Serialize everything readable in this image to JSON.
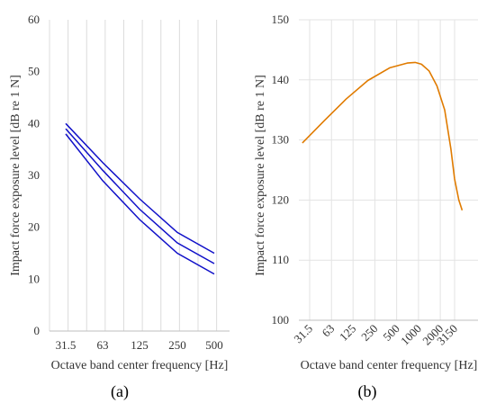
{
  "chart_data": [
    {
      "type": "line",
      "panel_label": "(a)",
      "xlabel": "Octave band center frequency [Hz]",
      "ylabel": "Impact force exposure level [dB re 1 N]",
      "ylim": [
        0,
        60
      ],
      "yticks": [
        "0",
        "10",
        "20",
        "30",
        "40",
        "50",
        "60"
      ],
      "categories": [
        "31.5",
        "63",
        "125",
        "250",
        "500"
      ],
      "color": "#1010c8",
      "grid": "vertical",
      "series": [
        {
          "values": [
            40,
            32.5,
            25.5,
            19,
            15
          ]
        },
        {
          "values": [
            39,
            31,
            23.5,
            17,
            13
          ]
        },
        {
          "values": [
            38,
            29,
            21.5,
            15,
            11
          ]
        }
      ]
    },
    {
      "type": "line",
      "panel_label": "(b)",
      "xlabel": "Octave band center frequency [Hz]",
      "ylabel": "Impact force exposure level [dB re 1 N]",
      "ylim": [
        100,
        150
      ],
      "yticks": [
        "100",
        "110",
        "120",
        "130",
        "140",
        "150"
      ],
      "categories": [
        "31.5",
        "63",
        "125",
        "250",
        "500",
        "1000",
        "2000",
        "3150"
      ],
      "color": "#e07b00",
      "grid": "both",
      "series": [
        {
          "x": [
            25,
            50,
            100,
            200,
            400,
            700,
            900,
            1100,
            1400,
            1800,
            2300,
            2800,
            3150,
            3600,
            4000
          ],
          "values": [
            129.5,
            133.2,
            136.8,
            139.9,
            142.0,
            142.8,
            142.9,
            142.6,
            141.5,
            139.0,
            135.0,
            128.5,
            123.5,
            120.0,
            118.3
          ]
        }
      ]
    }
  ]
}
